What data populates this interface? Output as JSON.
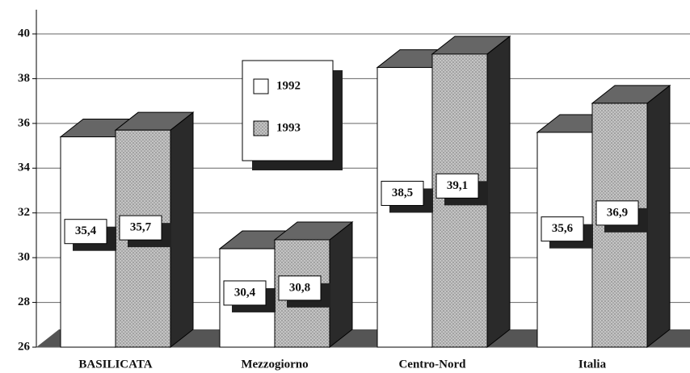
{
  "chart_data": {
    "type": "bar3d",
    "categories": [
      "BASILICATA",
      "Mezzogiorno",
      "Centro-Nord",
      "Italia"
    ],
    "series": [
      {
        "name": "1992",
        "color": "#ffffff",
        "values": [
          35.4,
          30.4,
          38.5,
          35.6
        ],
        "value_labels": [
          "35,4",
          "30,4",
          "38,5",
          "35,6"
        ]
      },
      {
        "name": "1993",
        "color": "#b8b8b8",
        "values": [
          35.7,
          30.8,
          39.1,
          36.9
        ],
        "value_labels": [
          "35,7",
          "30,8",
          "39,1",
          "36,9"
        ]
      }
    ],
    "ylim": [
      26,
      40
    ],
    "yticks": [
      26,
      28,
      30,
      32,
      34,
      36,
      38,
      40
    ],
    "grid": true,
    "legend": "top-center"
  }
}
